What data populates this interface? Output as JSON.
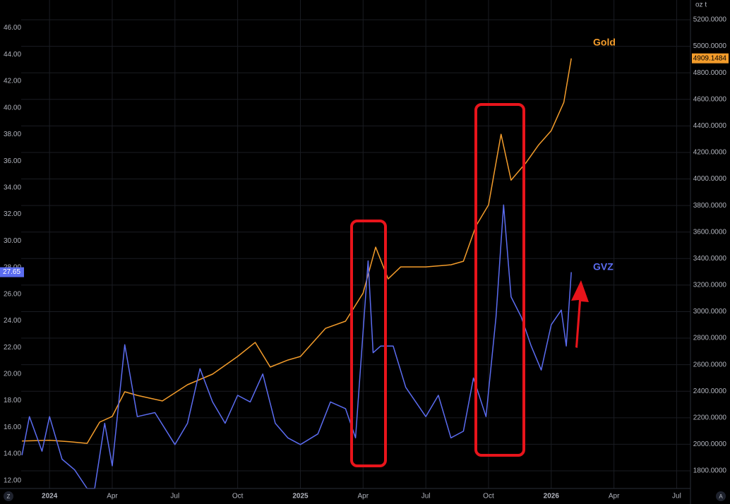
{
  "chart_data": {
    "type": "line",
    "unit_label": "oz t",
    "controls": [
      "Z",
      "A"
    ],
    "xlim": [
      2023.887,
      2026.555
    ],
    "xticks": [
      {
        "value": 2024,
        "label": "2024"
      },
      {
        "value": 2024.25,
        "label": "Apr"
      },
      {
        "value": 2024.5,
        "label": "Jul"
      },
      {
        "value": 2024.75,
        "label": "Oct"
      },
      {
        "value": 2025,
        "label": "2025"
      },
      {
        "value": 2025.25,
        "label": "Apr"
      },
      {
        "value": 2025.5,
        "label": "Jul"
      },
      {
        "value": 2025.75,
        "label": "Oct"
      },
      {
        "value": 2026,
        "label": "2026"
      },
      {
        "value": 2026.25,
        "label": "Apr"
      },
      {
        "value": 2026.5,
        "label": "Jul"
      }
    ],
    "ylim": [
      11.4,
      48.1
    ],
    "yticks": [
      {
        "value": 12,
        "label": "12.00"
      },
      {
        "value": 14,
        "label": "14.00"
      },
      {
        "value": 16,
        "label": "16.00"
      },
      {
        "value": 18,
        "label": "18.00"
      },
      {
        "value": 20,
        "label": "20.00"
      },
      {
        "value": 22,
        "label": "22.00"
      },
      {
        "value": 24,
        "label": "24.00"
      },
      {
        "value": 26,
        "label": "26.00"
      },
      {
        "value": 28,
        "label": "28.00"
      },
      {
        "value": 30,
        "label": "30.00"
      },
      {
        "value": 32,
        "label": "32.00"
      },
      {
        "value": 34,
        "label": "34.00"
      },
      {
        "value": 36,
        "label": "36.00"
      },
      {
        "value": 38,
        "label": "38.00"
      },
      {
        "value": 40,
        "label": "40.00"
      },
      {
        "value": 42,
        "label": "42.00"
      },
      {
        "value": 44,
        "label": "44.00"
      },
      {
        "value": 46,
        "label": "46.00"
      }
    ],
    "y2lim": [
      1667,
      5349
    ],
    "y2ticks": [
      {
        "value": 1800,
        "label": "1800.0000"
      },
      {
        "value": 2000,
        "label": "2000.0000"
      },
      {
        "value": 2200,
        "label": "2200.0000"
      },
      {
        "value": 2400,
        "label": "2400.0000"
      },
      {
        "value": 2600,
        "label": "2600.0000"
      },
      {
        "value": 2800,
        "label": "2800.0000"
      },
      {
        "value": 3000,
        "label": "3000.0000"
      },
      {
        "value": 3200,
        "label": "3200.0000"
      },
      {
        "value": 3400,
        "label": "3400.0000"
      },
      {
        "value": 3600,
        "label": "3600.0000"
      },
      {
        "value": 3800,
        "label": "3800.0000"
      },
      {
        "value": 4000,
        "label": "4000.0000"
      },
      {
        "value": 4200,
        "label": "4200.0000"
      },
      {
        "value": 4400,
        "label": "4400.0000"
      },
      {
        "value": 4600,
        "label": "4600.0000"
      },
      {
        "value": 4800,
        "label": "4800.0000"
      },
      {
        "value": 5000,
        "label": "5000.0000"
      },
      {
        "value": 5200,
        "label": "5200.0000"
      }
    ],
    "grid": true,
    "series": [
      {
        "name": "Gold",
        "color": "#f39c2b",
        "axis": "y2",
        "x": [
          2023.89,
          2024.0,
          2024.08,
          2024.15,
          2024.2,
          2024.25,
          2024.3,
          2024.35,
          2024.45,
          2024.55,
          2024.65,
          2024.75,
          2024.82,
          2024.88,
          2024.95,
          2025.0,
          2025.1,
          2025.18,
          2025.25,
          2025.3,
          2025.35,
          2025.4,
          2025.5,
          2025.6,
          2025.65,
          2025.7,
          2025.75,
          2025.8,
          2025.84,
          2025.9,
          2025.95,
          2026.0,
          2026.05,
          2026.08
        ],
        "values": [
          2025,
          2030,
          2020,
          2007,
          2167,
          2210,
          2396,
          2369,
          2327,
          2449,
          2529,
          2662,
          2768,
          2582,
          2635,
          2662,
          2874,
          2928,
          3140,
          3486,
          3247,
          3337,
          3337,
          3353,
          3380,
          3646,
          3805,
          4337,
          3991,
          4124,
          4257,
          4364,
          4577,
          4909.1484
        ]
      },
      {
        "name": "GVZ",
        "color": "#5b6cf0",
        "x": [
          2023.89,
          2023.92,
          2023.97,
          2024.0,
          2024.05,
          2024.1,
          2024.15,
          2024.18,
          2024.22,
          2024.25,
          2024.3,
          2024.35,
          2024.42,
          2024.5,
          2024.55,
          2024.6,
          2024.65,
          2024.7,
          2024.75,
          2024.8,
          2024.85,
          2024.9,
          2024.95,
          2025.0,
          2025.07,
          2025.12,
          2025.18,
          2025.22,
          2025.27,
          2025.29,
          2025.32,
          2025.37,
          2025.42,
          2025.5,
          2025.55,
          2025.6,
          2025.65,
          2025.69,
          2025.74,
          2025.78,
          2025.81,
          2025.84,
          2025.88,
          2025.92,
          2025.96,
          2026.0,
          2026.04,
          2026.06,
          2026.08
        ],
        "values": [
          13.9,
          16.8,
          14.2,
          16.8,
          13.6,
          12.8,
          11.4,
          11.4,
          16.3,
          13.1,
          22.2,
          16.8,
          17.1,
          14.7,
          16.3,
          20.4,
          17.9,
          16.3,
          18.4,
          17.9,
          20.0,
          16.3,
          15.2,
          14.7,
          15.5,
          17.9,
          17.4,
          15.2,
          28.5,
          21.6,
          22.1,
          22.1,
          19.0,
          16.8,
          18.4,
          15.2,
          15.7,
          19.7,
          16.8,
          24.3,
          32.7,
          25.8,
          24.3,
          22.1,
          20.3,
          23.7,
          24.8,
          22.1,
          27.65
        ]
      }
    ]
  }
}
